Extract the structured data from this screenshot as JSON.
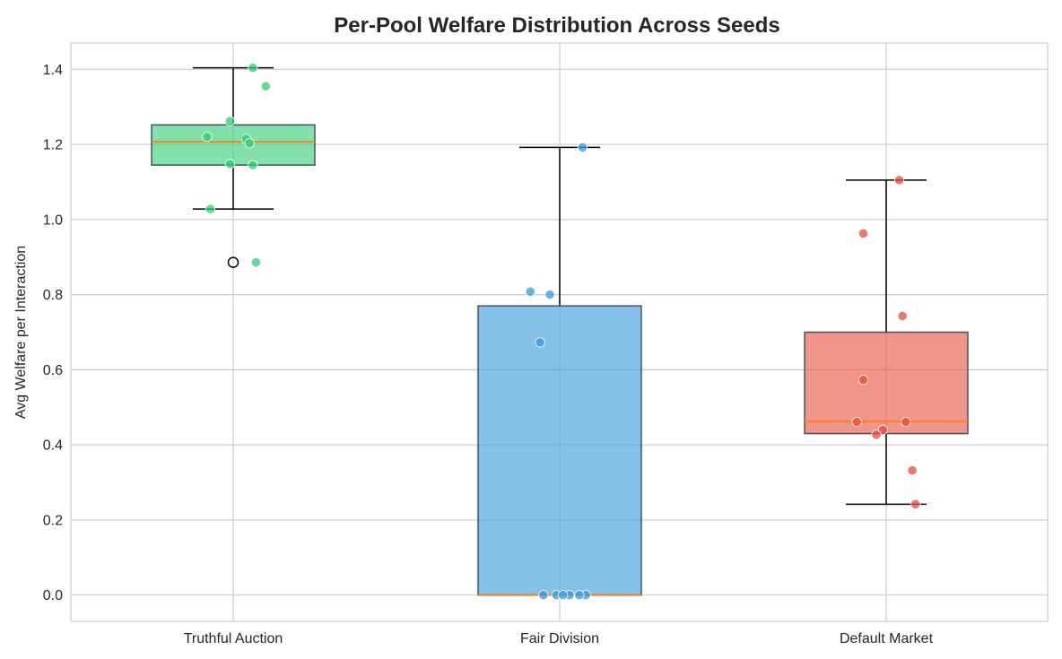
{
  "chart_data": {
    "type": "box",
    "title": "Per-Pool Welfare Distribution Across Seeds",
    "xlabel": "",
    "ylabel": "Avg Welfare per Interaction",
    "ylim": [
      -0.07,
      1.47
    ],
    "yticks": [
      0.0,
      0.2,
      0.4,
      0.6,
      0.8,
      1.0,
      1.2,
      1.4
    ],
    "grid": true,
    "categories": [
      "Truthful Auction",
      "Fair Division",
      "Default Market"
    ],
    "median_color": "#ff7f0e",
    "boxes": [
      {
        "name": "Truthful Auction",
        "color": "#2ecc71",
        "q1": 1.145,
        "median": 1.207,
        "q3": 1.252,
        "whisker_low": 1.028,
        "whisker_high": 1.404,
        "outliers": [
          0.886
        ],
        "points": [
          {
            "dx": 0.06,
            "y": 1.404
          },
          {
            "dx": 0.1,
            "y": 1.355
          },
          {
            "dx": -0.01,
            "y": 1.262
          },
          {
            "dx": -0.08,
            "y": 1.22
          },
          {
            "dx": 0.04,
            "y": 1.215
          },
          {
            "dx": 0.05,
            "y": 1.203
          },
          {
            "dx": -0.01,
            "y": 1.148
          },
          {
            "dx": 0.06,
            "y": 1.145
          },
          {
            "dx": -0.07,
            "y": 1.028
          },
          {
            "dx": 0.07,
            "y": 0.886
          }
        ]
      },
      {
        "name": "Fair Division",
        "color": "#3498db",
        "q1": 0.0,
        "median": 0.0,
        "q3": 0.77,
        "whisker_low": 0.0,
        "whisker_high": 1.192,
        "outliers": [],
        "points": [
          {
            "dx": 0.07,
            "y": 1.192
          },
          {
            "dx": -0.09,
            "y": 0.808
          },
          {
            "dx": -0.03,
            "y": 0.8
          },
          {
            "dx": -0.06,
            "y": 0.673
          },
          {
            "dx": -0.01,
            "y": 0.0
          },
          {
            "dx": 0.03,
            "y": 0.0
          },
          {
            "dx": -0.05,
            "y": 0.0
          },
          {
            "dx": 0.08,
            "y": 0.0
          },
          {
            "dx": 0.01,
            "y": 0.0
          },
          {
            "dx": 0.06,
            "y": 0.0
          }
        ]
      },
      {
        "name": "Default Market",
        "color": "#e74c3c",
        "q1": 0.43,
        "median": 0.462,
        "q3": 0.7,
        "whisker_low": 0.242,
        "whisker_high": 1.105,
        "outliers": [],
        "points": [
          {
            "dx": 0.04,
            "y": 1.105
          },
          {
            "dx": -0.07,
            "y": 0.963
          },
          {
            "dx": 0.05,
            "y": 0.743
          },
          {
            "dx": -0.07,
            "y": 0.573
          },
          {
            "dx": -0.09,
            "y": 0.461
          },
          {
            "dx": 0.06,
            "y": 0.461
          },
          {
            "dx": -0.01,
            "y": 0.44
          },
          {
            "dx": -0.03,
            "y": 0.427
          },
          {
            "dx": 0.08,
            "y": 0.332
          },
          {
            "dx": 0.09,
            "y": 0.242
          }
        ]
      }
    ]
  }
}
